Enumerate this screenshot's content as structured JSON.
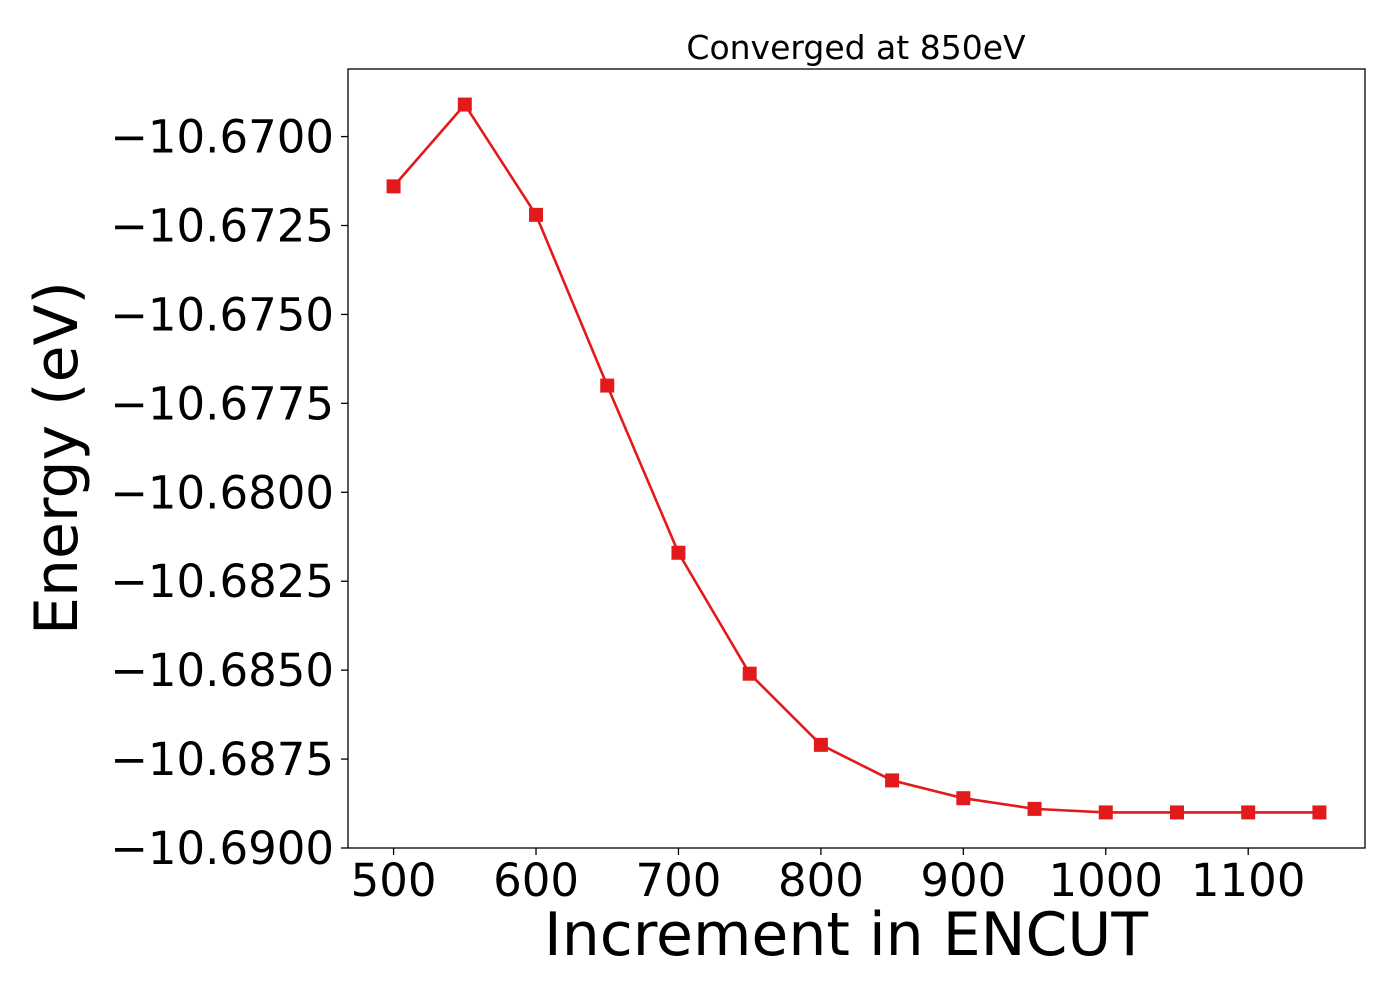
{
  "chart_data": {
    "type": "line",
    "title": "Converged at 850eV",
    "xlabel": "Increment in ENCUT",
    "ylabel": "Energy (eV)",
    "x": [
      500,
      550,
      600,
      650,
      700,
      750,
      800,
      850,
      900,
      950,
      1000,
      1050,
      1100,
      1150
    ],
    "series": [
      {
        "name": "",
        "color": "#e31a1c",
        "marker": "square",
        "values": [
          -10.6714,
          -10.6691,
          -10.6722,
          -10.677,
          -10.6817,
          -10.6851,
          -10.6871,
          -10.6881,
          -10.6886,
          -10.6889,
          -10.689,
          -10.689,
          -10.689,
          -10.689
        ]
      }
    ],
    "xticks": [
      500,
      600,
      700,
      800,
      900,
      1000,
      1100
    ],
    "xtick_labels": [
      "500",
      "600",
      "700",
      "800",
      "900",
      "1000",
      "1100"
    ],
    "yticks": [
      -10.67,
      -10.6725,
      -10.675,
      -10.6775,
      -10.68,
      -10.6825,
      -10.685,
      -10.6875,
      -10.69
    ],
    "ytick_labels": [
      "−10.6700",
      "−10.6725",
      "−10.6750",
      "−10.6775",
      "−10.6800",
      "−10.6825",
      "−10.6850",
      "−10.6875",
      "−10.6900"
    ],
    "xlim": [
      468,
      1182
    ],
    "ylim": [
      -10.69,
      -10.6681
    ],
    "grid": false,
    "legend": "none"
  }
}
